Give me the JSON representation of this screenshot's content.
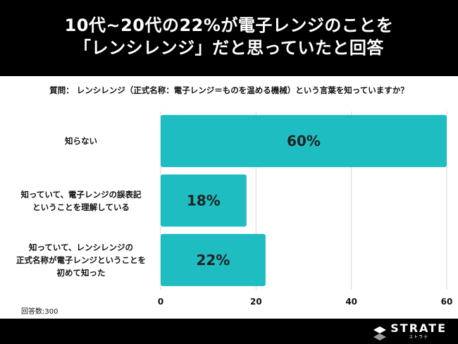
{
  "header": {
    "title_line1": "10代~20代の22%が電子レンジのことを",
    "title_line2": "「レンシレンジ」だと思っていたと回答"
  },
  "question": "質問： レンシレンジ（正式名称：電子レンジ＝ものを温める機械）という言葉を知っていますか？",
  "sample_size": "回答数:300",
  "footer": {
    "brand_name": "STRATE",
    "brand_sub": "ストラテ"
  },
  "colors": {
    "bar": "#1ebdc1",
    "grid": "#d9d9d9",
    "header_bg": "#000000"
  },
  "chart_data": {
    "type": "bar",
    "orientation": "horizontal",
    "title": "10代~20代の22%が電子レンジのことを「レンシレンジ」だと思っていたと回答",
    "categories": [
      [
        "知らない"
      ],
      [
        "知っていて、電子レンジの誤表記",
        "ということを理解している"
      ],
      [
        "知っていて、レンシレンジの",
        "正式名称が電子レンジということを",
        "初めて知った"
      ]
    ],
    "values": [
      60,
      18,
      22
    ],
    "data_labels": [
      "60%",
      "18%",
      "22%"
    ],
    "xlim": [
      0,
      60
    ],
    "xticks": [
      "0",
      "20",
      "40",
      "60"
    ],
    "grid": true,
    "legend": "none"
  }
}
